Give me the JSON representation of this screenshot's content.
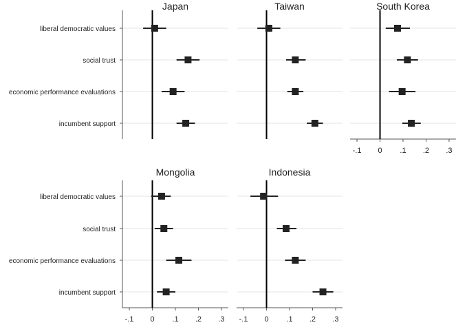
{
  "chart_data": {
    "type": "scatter",
    "subtype": "coefficient-plot-with-confidence-intervals",
    "categories": [
      "liberal democratic values",
      "social trust",
      "economic performance evaluations",
      "incumbent support"
    ],
    "xlim": [
      -0.13,
      0.33
    ],
    "xticks": [
      -0.1,
      0,
      0.1,
      0.2,
      0.3
    ],
    "xtick_labels": [
      "-.1",
      "0",
      ".1",
      ".2",
      ".3"
    ],
    "reference_line": 0,
    "grid": "horizontal",
    "marker_color": "#222222",
    "panels": [
      {
        "title": "Japan",
        "estimates": [
          0.01,
          0.155,
          0.09,
          0.145
        ],
        "ci_low": [
          -0.04,
          0.105,
          0.04,
          0.105
        ],
        "ci_high": [
          0.06,
          0.205,
          0.14,
          0.185
        ]
      },
      {
        "title": "Taiwan",
        "estimates": [
          0.01,
          0.125,
          0.125,
          0.21
        ],
        "ci_low": [
          -0.04,
          0.085,
          0.09,
          0.175
        ],
        "ci_high": [
          0.06,
          0.17,
          0.16,
          0.245
        ]
      },
      {
        "title": "South Korea",
        "estimates": [
          0.076,
          0.119,
          0.096,
          0.136
        ],
        "ci_low": [
          0.025,
          0.073,
          0.039,
          0.097
        ],
        "ci_high": [
          0.13,
          0.165,
          0.154,
          0.177
        ]
      },
      {
        "title": "Mongolia",
        "estimates": [
          0.04,
          0.05,
          0.115,
          0.06
        ],
        "ci_low": [
          -0.005,
          0.01,
          0.06,
          0.02
        ],
        "ci_high": [
          0.08,
          0.09,
          0.17,
          0.1
        ]
      },
      {
        "title": "Indonesia",
        "estimates": [
          -0.013,
          0.085,
          0.125,
          0.245
        ],
        "ci_low": [
          -0.07,
          0.045,
          0.08,
          0.2
        ],
        "ci_high": [
          0.05,
          0.13,
          0.17,
          0.29
        ]
      }
    ]
  }
}
